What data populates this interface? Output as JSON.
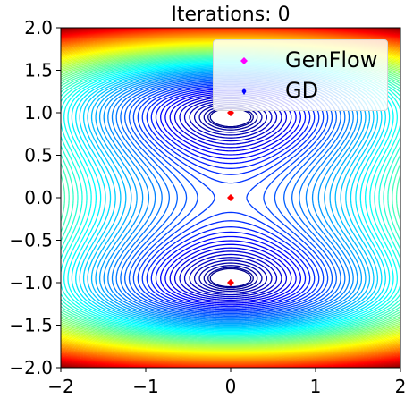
{
  "chart_data": {
    "type": "contour",
    "title": "Iterations: 0",
    "xlabel": "",
    "ylabel": "",
    "xlim": [
      -2,
      2
    ],
    "ylim": [
      -2,
      2
    ],
    "x_ticks": [
      -2,
      -1,
      0,
      1,
      2
    ],
    "x_tick_labels": [
      "−2",
      "−1",
      "0",
      "1",
      "2"
    ],
    "y_ticks": [
      -2.0,
      -1.5,
      -1.0,
      -0.5,
      0.0,
      0.5,
      1.0,
      1.5,
      2.0
    ],
    "y_tick_labels": [
      "−2.0",
      "−1.5",
      "−1.0",
      "−0.5",
      "0.0",
      "0.5",
      "1.0",
      "1.5",
      "2.0"
    ],
    "grid": false,
    "legend_position": "top-right",
    "colormap": "jet",
    "series": [
      {
        "name": "GenFlow",
        "marker": "diamond",
        "color": "#ff00ff",
        "points": [
          [
            0.0,
            1.0
          ],
          [
            0.0,
            0.0
          ],
          [
            0.0,
            -1.0
          ]
        ]
      },
      {
        "name": "GD",
        "marker": "thin-diamond",
        "color": "#0000ff",
        "points": [
          [
            0.0,
            1.0
          ],
          [
            0.0,
            0.0
          ],
          [
            0.0,
            -1.0
          ]
        ]
      }
    ],
    "overlap_color": "#ff0000"
  }
}
